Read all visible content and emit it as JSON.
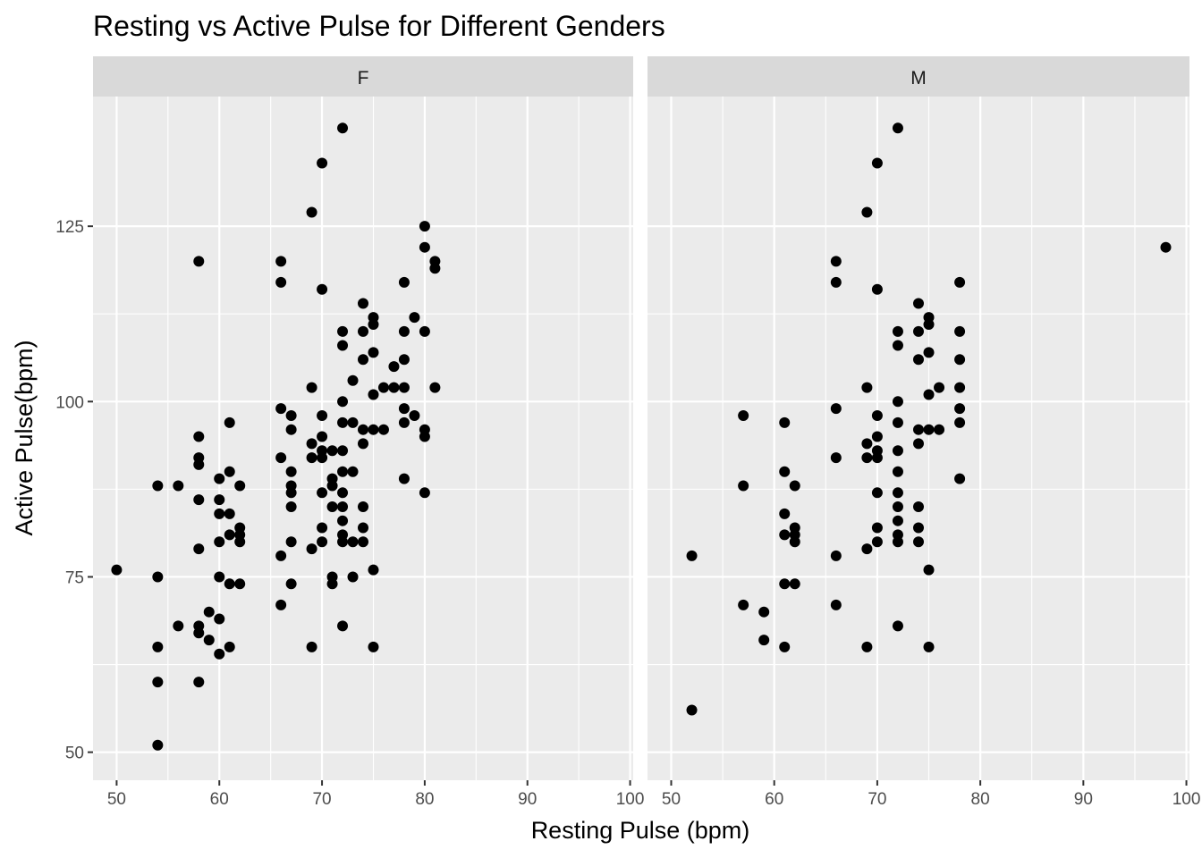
{
  "chart_data": {
    "type": "scatter",
    "title": "Resting vs Active Pulse for Different Genders",
    "xlabel": "Resting Pulse (bpm)",
    "ylabel": "Active Pulse(bpm)",
    "xlim": [
      47.7,
      100.3
    ],
    "ylim": [
      46.0,
      143.5
    ],
    "x_ticks": [
      50,
      60,
      70,
      80,
      90,
      100
    ],
    "y_ticks": [
      50,
      75,
      100,
      125
    ],
    "grid": true,
    "legend": "none",
    "point_color": "#000000",
    "panel_background": "#ebebeb",
    "strip_background": "#d9d9d9",
    "facets": [
      {
        "label": "F",
        "points": [
          [
            50,
            76
          ],
          [
            54,
            88
          ],
          [
            54,
            75
          ],
          [
            54,
            65
          ],
          [
            54,
            60
          ],
          [
            54,
            51
          ],
          [
            56,
            88
          ],
          [
            56,
            68
          ],
          [
            58,
            120
          ],
          [
            58,
            95
          ],
          [
            58,
            92
          ],
          [
            58,
            91
          ],
          [
            58,
            86
          ],
          [
            58,
            79
          ],
          [
            58,
            68
          ],
          [
            58,
            67
          ],
          [
            58,
            60
          ],
          [
            59,
            70
          ],
          [
            59,
            66
          ],
          [
            60,
            89
          ],
          [
            60,
            86
          ],
          [
            60,
            84
          ],
          [
            60,
            80
          ],
          [
            60,
            75
          ],
          [
            60,
            69
          ],
          [
            60,
            64
          ],
          [
            61,
            97
          ],
          [
            61,
            90
          ],
          [
            61,
            84
          ],
          [
            61,
            81
          ],
          [
            61,
            74
          ],
          [
            61,
            65
          ],
          [
            62,
            88
          ],
          [
            62,
            82
          ],
          [
            62,
            81
          ],
          [
            62,
            80
          ],
          [
            62,
            74
          ],
          [
            66,
            120
          ],
          [
            66,
            117
          ],
          [
            66,
            99
          ],
          [
            66,
            92
          ],
          [
            66,
            78
          ],
          [
            66,
            71
          ],
          [
            67,
            98
          ],
          [
            67,
            96
          ],
          [
            67,
            90
          ],
          [
            67,
            88
          ],
          [
            67,
            87
          ],
          [
            67,
            85
          ],
          [
            67,
            80
          ],
          [
            67,
            74
          ],
          [
            69,
            127
          ],
          [
            69,
            102
          ],
          [
            69,
            94
          ],
          [
            69,
            92
          ],
          [
            69,
            79
          ],
          [
            69,
            65
          ],
          [
            70,
            134
          ],
          [
            70,
            116
          ],
          [
            70,
            98
          ],
          [
            70,
            95
          ],
          [
            70,
            93
          ],
          [
            70,
            92
          ],
          [
            70,
            87
          ],
          [
            70,
            82
          ],
          [
            70,
            80
          ],
          [
            71,
            93
          ],
          [
            71,
            89
          ],
          [
            71,
            88
          ],
          [
            71,
            85
          ],
          [
            71,
            75
          ],
          [
            71,
            74
          ],
          [
            72,
            139
          ],
          [
            72,
            110
          ],
          [
            72,
            108
          ],
          [
            72,
            100
          ],
          [
            72,
            97
          ],
          [
            72,
            93
          ],
          [
            72,
            90
          ],
          [
            72,
            87
          ],
          [
            72,
            85
          ],
          [
            72,
            83
          ],
          [
            72,
            81
          ],
          [
            72,
            80
          ],
          [
            72,
            68
          ],
          [
            73,
            103
          ],
          [
            73,
            97
          ],
          [
            73,
            90
          ],
          [
            73,
            80
          ],
          [
            73,
            75
          ],
          [
            74,
            114
          ],
          [
            74,
            110
          ],
          [
            74,
            106
          ],
          [
            74,
            96
          ],
          [
            74,
            94
          ],
          [
            74,
            85
          ],
          [
            74,
            82
          ],
          [
            74,
            80
          ],
          [
            75,
            112
          ],
          [
            75,
            111
          ],
          [
            75,
            107
          ],
          [
            75,
            101
          ],
          [
            75,
            96
          ],
          [
            75,
            76
          ],
          [
            75,
            65
          ],
          [
            76,
            102
          ],
          [
            76,
            96
          ],
          [
            77,
            105
          ],
          [
            77,
            102
          ],
          [
            78,
            117
          ],
          [
            78,
            110
          ],
          [
            78,
            106
          ],
          [
            78,
            102
          ],
          [
            78,
            99
          ],
          [
            78,
            97
          ],
          [
            78,
            89
          ],
          [
            79,
            112
          ],
          [
            79,
            98
          ],
          [
            80,
            125
          ],
          [
            80,
            122
          ],
          [
            80,
            110
          ],
          [
            80,
            96
          ],
          [
            80,
            95
          ],
          [
            80,
            87
          ],
          [
            81,
            120
          ],
          [
            81,
            119
          ],
          [
            81,
            102
          ]
        ]
      },
      {
        "label": "M",
        "points": [
          [
            52,
            78
          ],
          [
            52,
            56
          ],
          [
            57,
            98
          ],
          [
            57,
            88
          ],
          [
            57,
            71
          ],
          [
            59,
            70
          ],
          [
            59,
            66
          ],
          [
            61,
            97
          ],
          [
            61,
            90
          ],
          [
            61,
            84
          ],
          [
            61,
            81
          ],
          [
            61,
            74
          ],
          [
            61,
            65
          ],
          [
            62,
            88
          ],
          [
            62,
            82
          ],
          [
            62,
            81
          ],
          [
            62,
            80
          ],
          [
            62,
            74
          ],
          [
            66,
            120
          ],
          [
            66,
            117
          ],
          [
            66,
            99
          ],
          [
            66,
            92
          ],
          [
            66,
            78
          ],
          [
            66,
            71
          ],
          [
            69,
            127
          ],
          [
            69,
            102
          ],
          [
            69,
            94
          ],
          [
            69,
            92
          ],
          [
            69,
            79
          ],
          [
            69,
            65
          ],
          [
            70,
            134
          ],
          [
            70,
            116
          ],
          [
            70,
            98
          ],
          [
            70,
            95
          ],
          [
            70,
            93
          ],
          [
            70,
            92
          ],
          [
            70,
            87
          ],
          [
            70,
            82
          ],
          [
            70,
            80
          ],
          [
            72,
            139
          ],
          [
            72,
            110
          ],
          [
            72,
            108
          ],
          [
            72,
            100
          ],
          [
            72,
            97
          ],
          [
            72,
            93
          ],
          [
            72,
            90
          ],
          [
            72,
            87
          ],
          [
            72,
            85
          ],
          [
            72,
            83
          ],
          [
            72,
            81
          ],
          [
            72,
            80
          ],
          [
            72,
            68
          ],
          [
            74,
            114
          ],
          [
            74,
            110
          ],
          [
            74,
            106
          ],
          [
            74,
            96
          ],
          [
            74,
            94
          ],
          [
            74,
            85
          ],
          [
            74,
            82
          ],
          [
            74,
            80
          ],
          [
            75,
            112
          ],
          [
            75,
            111
          ],
          [
            75,
            107
          ],
          [
            75,
            101
          ],
          [
            75,
            96
          ],
          [
            75,
            76
          ],
          [
            75,
            65
          ],
          [
            76,
            102
          ],
          [
            76,
            96
          ],
          [
            78,
            117
          ],
          [
            78,
            110
          ],
          [
            78,
            106
          ],
          [
            78,
            102
          ],
          [
            78,
            99
          ],
          [
            78,
            97
          ],
          [
            78,
            89
          ],
          [
            98,
            122
          ]
        ]
      }
    ]
  }
}
